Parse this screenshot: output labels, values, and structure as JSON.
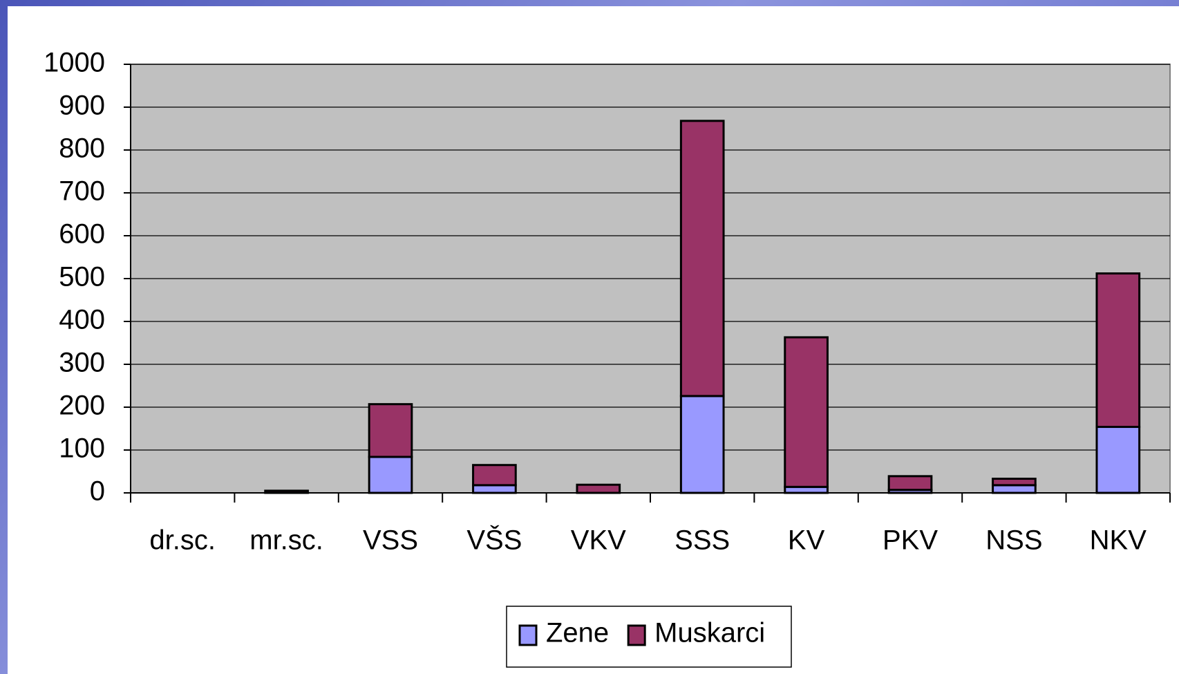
{
  "chart_data": {
    "type": "stacked_bar",
    "categories": [
      "dr.sc.",
      "mr.sc.",
      "VSS",
      "VŠS",
      "VKV",
      "SSS",
      "KV",
      "PKV",
      "NSS",
      "NKV"
    ],
    "series": [
      {
        "name": "Zene",
        "color": "#9999ff",
        "values": [
          0,
          0,
          84,
          18,
          0,
          226,
          14,
          7,
          18,
          154
        ]
      },
      {
        "name": "Muskarci",
        "color": "#993366",
        "values": [
          0,
          5,
          123,
          47,
          19,
          642,
          349,
          32,
          15,
          358
        ]
      }
    ],
    "ylim": [
      0,
      1000
    ],
    "yticks": [
      0,
      100,
      200,
      300,
      400,
      500,
      600,
      700,
      800,
      900,
      1000
    ],
    "grid": true,
    "legend": "bottom"
  }
}
